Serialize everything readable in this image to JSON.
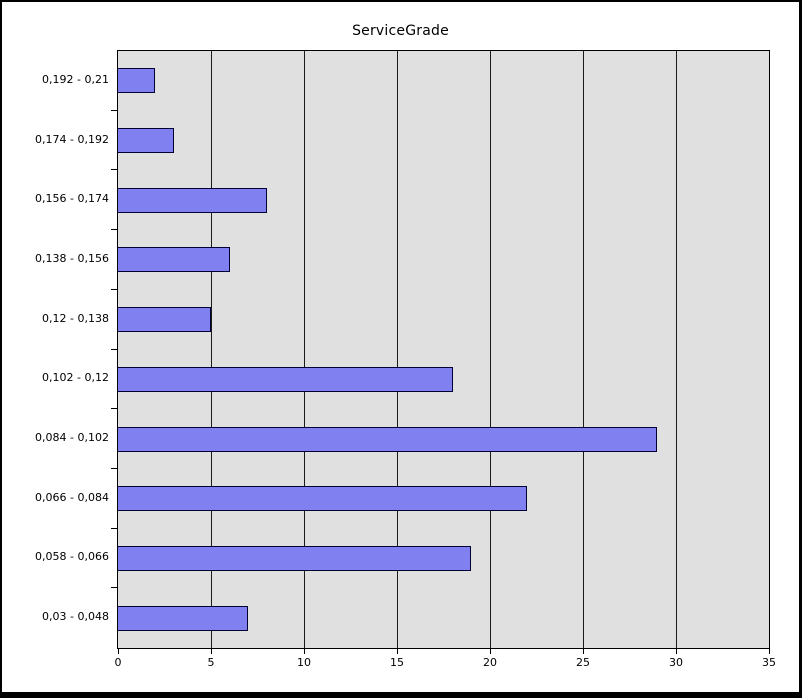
{
  "chart_data": {
    "type": "bar",
    "orientation": "horizontal",
    "title": "ServiceGrade",
    "categories": [
      "0,192 - 0,21",
      "0,174 - 0,192",
      "0,156 - 0,174",
      "0,138 - 0,156",
      "0,12 - 0,138",
      "0,102 - 0,12",
      "0,084 - 0,102",
      "0,066 - 0,084",
      "0,058 - 0,066",
      "0,03 - 0,048"
    ],
    "values": [
      2,
      3,
      8,
      6,
      5,
      18,
      29,
      22,
      19,
      7
    ],
    "xlabel": "",
    "ylabel": "",
    "xlim": [
      0,
      35
    ],
    "x_ticks": [
      0,
      5,
      10,
      15,
      20,
      25,
      30,
      35
    ],
    "grid": true,
    "legend": false,
    "colors": {
      "bar_fill": "#8080f0",
      "bar_border": "#000033",
      "plot_background": "#e0e0e0",
      "gridline": "#1a1a1a",
      "axis": "#000000",
      "text": "#000000",
      "frame": "#000000",
      "background": "#ffffff"
    }
  }
}
